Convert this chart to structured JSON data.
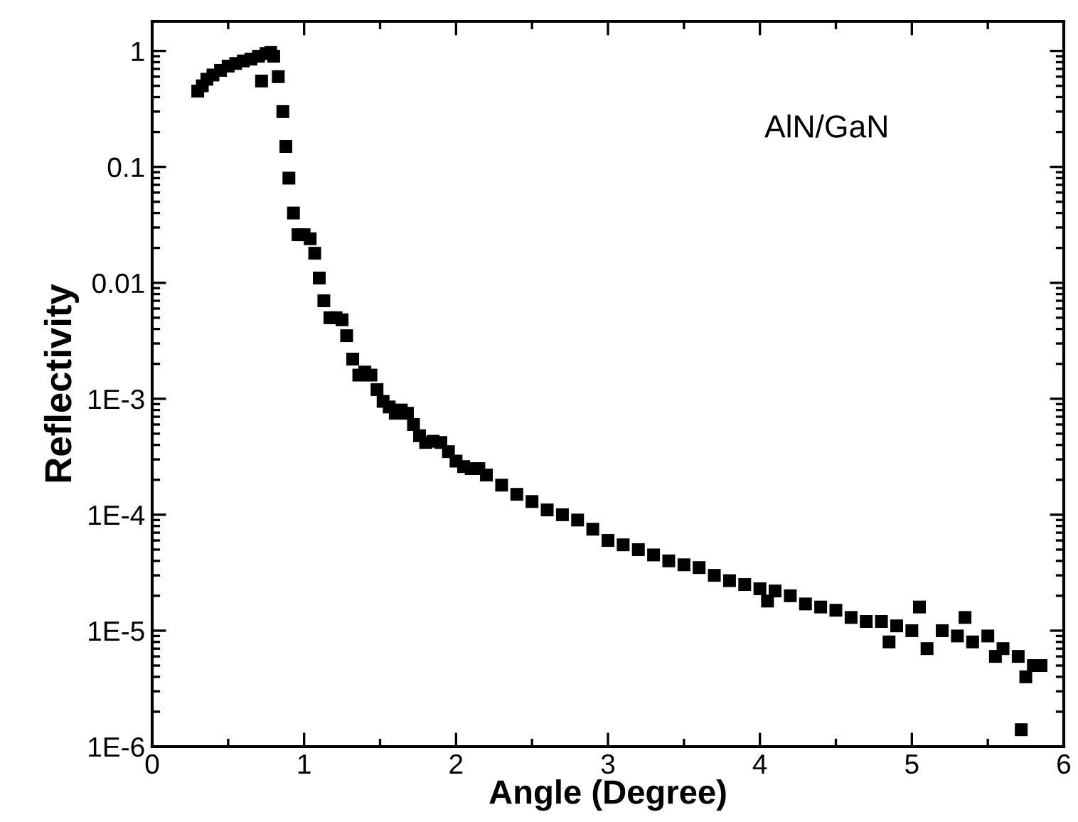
{
  "chart_data": {
    "type": "scatter",
    "xlabel": "Angle (Degree)",
    "ylabel": "Reflectivity",
    "annotations": [
      "AlN/GaN"
    ],
    "log": "y",
    "marker": "square",
    "grid": false,
    "legend": false,
    "xlim": [
      0,
      6
    ],
    "xticks": [
      0,
      1,
      2,
      3,
      4,
      5,
      6
    ],
    "ylim": [
      1e-06,
      1.8
    ],
    "yticks": [
      1,
      0.1,
      0.01,
      {
        "value": 0.001,
        "label": "1E-3"
      },
      {
        "value": 0.0001,
        "label": "1E-4"
      },
      {
        "value": 1e-05,
        "label": "1E-5"
      },
      {
        "value": 1e-06,
        "label": "1E-6"
      }
    ],
    "series": [
      {
        "color": "#000000",
        "x": [
          0.3,
          0.33,
          0.36,
          0.4,
          0.45,
          0.5,
          0.55,
          0.6,
          0.65,
          0.7,
          0.72,
          0.75,
          0.78,
          0.8,
          0.83,
          0.86,
          0.88,
          0.9,
          0.93,
          0.96,
          1.0,
          1.04,
          1.07,
          1.1,
          1.13,
          1.17,
          1.21,
          1.25,
          1.28,
          1.32,
          1.36,
          1.4,
          1.44,
          1.48,
          1.52,
          1.56,
          1.6,
          1.64,
          1.68,
          1.72,
          1.76,
          1.8,
          1.85,
          1.9,
          1.95,
          2.0,
          2.05,
          2.1,
          2.15,
          2.2,
          2.3,
          2.4,
          2.5,
          2.6,
          2.7,
          2.8,
          2.9,
          3.0,
          3.1,
          3.2,
          3.3,
          3.4,
          3.5,
          3.6,
          3.7,
          3.8,
          3.9,
          4.0,
          4.05,
          4.1,
          4.2,
          4.3,
          4.4,
          4.5,
          4.6,
          4.7,
          4.8,
          4.85,
          4.9,
          5.0,
          5.05,
          5.1,
          5.2,
          5.3,
          5.35,
          5.4,
          5.5,
          5.55,
          5.6,
          5.7,
          5.72,
          5.75,
          5.8,
          5.85
        ],
        "values": [
          0.45,
          0.5,
          0.57,
          0.62,
          0.68,
          0.74,
          0.78,
          0.82,
          0.85,
          0.9,
          0.55,
          0.95,
          0.97,
          0.9,
          0.6,
          0.3,
          0.15,
          0.08,
          0.04,
          0.026,
          0.026,
          0.024,
          0.018,
          0.011,
          0.007,
          0.005,
          0.005,
          0.0048,
          0.0035,
          0.0022,
          0.0016,
          0.0017,
          0.0016,
          0.0012,
          0.00095,
          0.00085,
          0.00075,
          0.0008,
          0.00075,
          0.0006,
          0.00048,
          0.00042,
          0.00043,
          0.00042,
          0.00035,
          0.00029,
          0.00026,
          0.00025,
          0.00025,
          0.00022,
          0.00018,
          0.00015,
          0.00013,
          0.00011,
          0.0001,
          9e-05,
          7.5e-05,
          6e-05,
          5.5e-05,
          5e-05,
          4.5e-05,
          4e-05,
          3.7e-05,
          3.5e-05,
          3e-05,
          2.7e-05,
          2.5e-05,
          2.3e-05,
          1.8e-05,
          2.2e-05,
          2e-05,
          1.7e-05,
          1.6e-05,
          1.5e-05,
          1.3e-05,
          1.2e-05,
          1.2e-05,
          8e-06,
          1.1e-05,
          1e-05,
          1.6e-05,
          7e-06,
          1e-05,
          9e-06,
          1.3e-05,
          8e-06,
          9e-06,
          6e-06,
          7e-06,
          6e-06,
          1.4e-06,
          4e-06,
          5e-06,
          5e-06
        ]
      }
    ]
  }
}
